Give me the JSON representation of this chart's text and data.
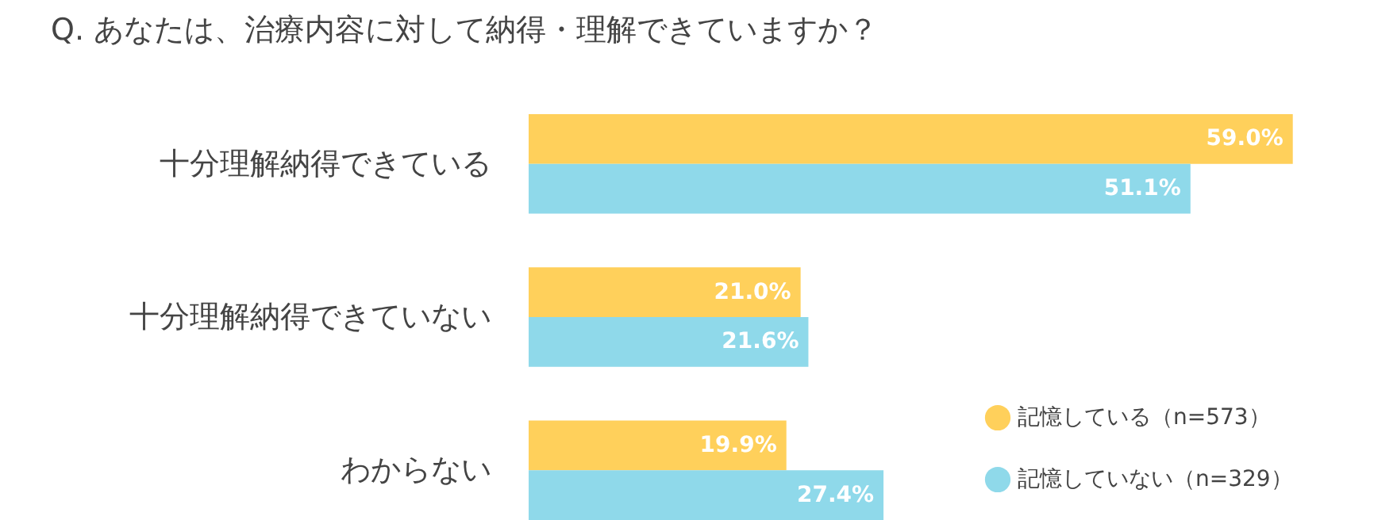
{
  "chart_data": {
    "type": "bar",
    "orientation": "horizontal",
    "title": "Q. あなたは、治療内容に対して納得・理解できていますか？",
    "categories": [
      "十分理解納得できている",
      "十分理解納得できていない",
      "わからない"
    ],
    "series": [
      {
        "name": "記憶している（n=573）",
        "color": "#ffd05b",
        "values": [
          59.0,
          21.0,
          19.9
        ],
        "value_labels": [
          "59.0%",
          "21.0%",
          "19.9%"
        ]
      },
      {
        "name": "記憶していない（n=329）",
        "color": "#8fd9ea",
        "values": [
          51.1,
          21.6,
          27.4
        ],
        "value_labels": [
          "51.1%",
          "21.6%",
          "27.4%"
        ]
      }
    ],
    "legend": "bottom right"
  }
}
